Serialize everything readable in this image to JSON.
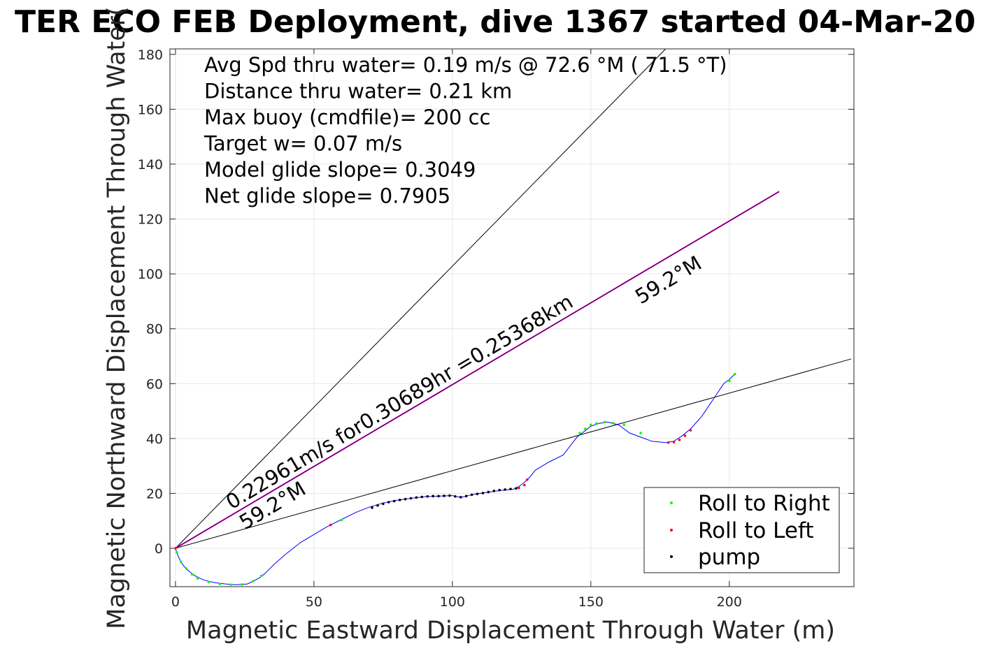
{
  "chart_data": {
    "type": "line",
    "title": "TER ECO FEB Deployment, dive 1367 started 04-Mar-20",
    "xlabel": "Magnetic Eastward Displacement Through Water (m)",
    "ylabel": "Magnetic Northward Displacement Through Water(",
    "xlim": [
      -2,
      245
    ],
    "ylim": [
      -14,
      182
    ],
    "xticks": [
      0,
      50,
      100,
      150,
      200
    ],
    "yticks": [
      0,
      20,
      40,
      60,
      80,
      100,
      120,
      140,
      160,
      180
    ],
    "grid": true,
    "legend_position": "bottom-right",
    "text_lines": [
      "Avg Spd thru water=  0.19 m/s @  72.6 °M ( 71.5 °T)",
      "Distance thru water=  0.21 km",
      "Max buoy (cmdfile)= 200 cc",
      "Target w= 0.07 m/s",
      "Model glide slope= 0.3049",
      "Net glide slope= 0.7905"
    ],
    "rotated_labels": {
      "speed_note": "0.22961m/s for0.30689hr =0.25368km",
      "heading_upper": "59.2°M",
      "heading_lower": "59.2°M"
    },
    "series": [
      {
        "name": "",
        "color": "#0000ff",
        "x": [
          0,
          0.3,
          1,
          2,
          3,
          5,
          7,
          10,
          14,
          18,
          22,
          26,
          28,
          30,
          32,
          36,
          40,
          45,
          50,
          55,
          60,
          65,
          70,
          75,
          80,
          85,
          90,
          95,
          100,
          102,
          104,
          106,
          108,
          112,
          117,
          122,
          124,
          126,
          128,
          130,
          135,
          140,
          145,
          150,
          153,
          156,
          160,
          164,
          168,
          172,
          177,
          180,
          183,
          186,
          190,
          194,
          198,
          200,
          202
        ],
        "y": [
          0,
          -1,
          -3,
          -5,
          -6.5,
          -8.5,
          -10,
          -11.5,
          -12.5,
          -13,
          -13.3,
          -13,
          -12,
          -11,
          -9.5,
          -5.5,
          -2,
          2,
          5,
          8,
          10.5,
          13,
          15,
          16.5,
          17.5,
          18.2,
          18.8,
          19,
          19.2,
          18.7,
          18.7,
          19.3,
          19.7,
          20.3,
          21,
          21.5,
          22.5,
          24,
          26,
          28.5,
          31.5,
          34,
          40.5,
          44.5,
          45.5,
          46,
          45,
          42,
          40.5,
          39,
          38.5,
          39,
          41,
          43.5,
          48,
          54,
          60,
          61.5,
          63.5
        ]
      },
      {
        "name": "Roll to Right",
        "color": "#00ff00",
        "x": [
          0.5,
          2,
          4,
          6,
          8,
          12,
          16,
          20,
          24,
          28,
          31,
          60,
          146,
          148,
          150,
          152,
          155,
          158,
          162,
          168,
          200,
          202
        ],
        "y": [
          -1.5,
          -5,
          -7.5,
          -9.5,
          -11,
          -12.3,
          -13,
          -13.3,
          -13.2,
          -12,
          -10,
          10.3,
          42,
          43.5,
          45,
          45.5,
          46,
          45.6,
          45,
          42,
          61,
          63.5
        ]
      },
      {
        "name": "Roll to Left",
        "color": "#ff0000",
        "x": [
          0,
          56,
          124,
          126,
          127,
          178,
          180,
          182,
          184,
          186
        ],
        "y": [
          0,
          8.5,
          22,
          23,
          25,
          38.5,
          38.7,
          39.5,
          41,
          43
        ]
      },
      {
        "name": "pump",
        "color": "#000000",
        "x": [
          71,
          73,
          75,
          77,
          79,
          81,
          83,
          85,
          87,
          89,
          91,
          93,
          95,
          97,
          99,
          101,
          103,
          105,
          107,
          109,
          111,
          113,
          115,
          117,
          119,
          121,
          123
        ],
        "y": [
          14.8,
          15.6,
          16.2,
          16.8,
          17.2,
          17.6,
          17.9,
          18.2,
          18.5,
          18.7,
          18.9,
          19,
          19,
          19.1,
          19.2,
          18.9,
          18.6,
          19,
          19.5,
          19.8,
          20.1,
          20.5,
          20.9,
          21.2,
          21.4,
          21.6,
          21.8
        ]
      }
    ],
    "reference_lines": [
      {
        "color": "#000000",
        "x": [
          0,
          177
        ],
        "y": [
          0,
          182
        ]
      },
      {
        "color": "#000000",
        "x": [
          0,
          244
        ],
        "y": [
          0,
          69
        ]
      },
      {
        "color": "#cc00cc",
        "x": [
          0,
          218
        ],
        "y": [
          0,
          130
        ]
      },
      {
        "color": "#000000",
        "x": [
          0,
          218
        ],
        "y": [
          0,
          130
        ]
      }
    ]
  }
}
